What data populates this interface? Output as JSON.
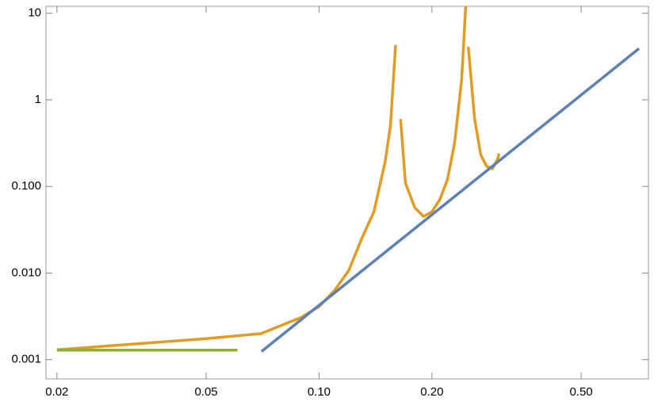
{
  "chart_data": {
    "type": "line",
    "log_x": true,
    "log_y": true,
    "xlim": [
      0.0187,
      0.756
    ],
    "ylim": [
      0.0006,
      12
    ],
    "xticks": [
      0.02,
      0.05,
      {
        "value": 0.1,
        "label": "0.10"
      },
      {
        "value": 0.2,
        "label": "0.20"
      },
      {
        "value": 0.5,
        "label": "0.50"
      }
    ],
    "yticks": [
      {
        "value": 0.001,
        "label": "0.001"
      },
      {
        "value": 0.01,
        "label": "0.010"
      },
      {
        "value": 0.1,
        "label": "0.100"
      },
      1,
      10
    ],
    "series": [
      {
        "color": "#e19c24",
        "x": [
          0.02,
          0.05,
          0.07,
          0.09,
          0.1,
          0.11,
          0.12,
          0.13,
          0.14,
          0.15,
          0.155,
          0.16,
          0.1616,
          0.165,
          0.17,
          0.18,
          0.19,
          0.2,
          0.21,
          0.22,
          0.23,
          0.24,
          0.246,
          0.247,
          0.25,
          0.26,
          0.27,
          0.28,
          0.29,
          0.3,
          0.302
        ],
        "values": [
          0.0013,
          0.00175,
          0.002,
          0.0031,
          0.0041,
          0.0063,
          0.0107,
          0.025,
          0.051,
          0.19,
          0.5,
          4.3,
          null,
          0.6,
          0.11,
          0.057,
          0.045,
          0.051,
          0.071,
          0.12,
          0.32,
          1.7,
          12,
          null,
          4.1,
          0.6,
          0.23,
          0.17,
          0.16,
          0.21,
          0.24
        ]
      },
      {
        "color": "#5e81b5",
        "x": [
          0.0702,
          0.713
        ],
        "values": [
          0.00124,
          3.9
        ]
      },
      {
        "color": "#8fb032",
        "x": [
          0.02,
          0.0606
        ],
        "values": [
          0.00129,
          0.00129
        ]
      }
    ]
  }
}
